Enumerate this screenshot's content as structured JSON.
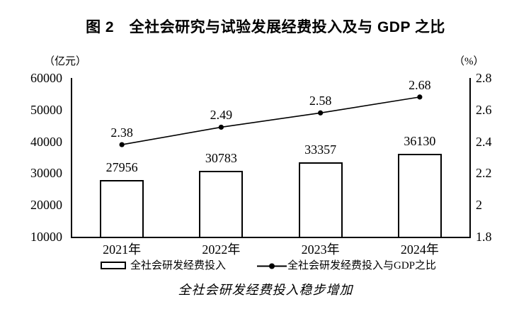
{
  "title": "图 2　全社会研究与试验发展经费投入及与 GDP 之比",
  "caption": "全社会研发经费投入稳步增加",
  "legend": {
    "bar_label": "全社会研发经费投入",
    "line_label": "全社会研发经费投入与GDP之比"
  },
  "colors": {
    "ink": "#000000",
    "background": "#ffffff",
    "bar_fill": "#ffffff",
    "bar_border": "#000000",
    "line": "#000000"
  },
  "chart_data": {
    "type": "bar",
    "subtype": "bar+line dual-axis",
    "categories": [
      "2021年",
      "2022年",
      "2023年",
      "2024年"
    ],
    "series": [
      {
        "name": "全社会研发经费投入",
        "type": "bar",
        "axis": "left",
        "values": [
          27956,
          30783,
          33357,
          36130
        ]
      },
      {
        "name": "全社会研发经费投入与GDP之比",
        "type": "line",
        "axis": "right",
        "values": [
          2.38,
          2.49,
          2.58,
          2.68
        ]
      }
    ],
    "left_axis": {
      "unit": "（亿元）",
      "min": 10000,
      "max": 60000,
      "ticks": [
        "60000",
        "50000",
        "40000",
        "30000",
        "20000",
        "10000"
      ]
    },
    "right_axis": {
      "unit": "（%）",
      "min": 1.8,
      "max": 2.8,
      "ticks": [
        "2.8",
        "2.6",
        "2.4",
        "2.2",
        "2",
        "1.8"
      ]
    },
    "grid": false,
    "legend_position": "bottom",
    "value_labels": true
  }
}
